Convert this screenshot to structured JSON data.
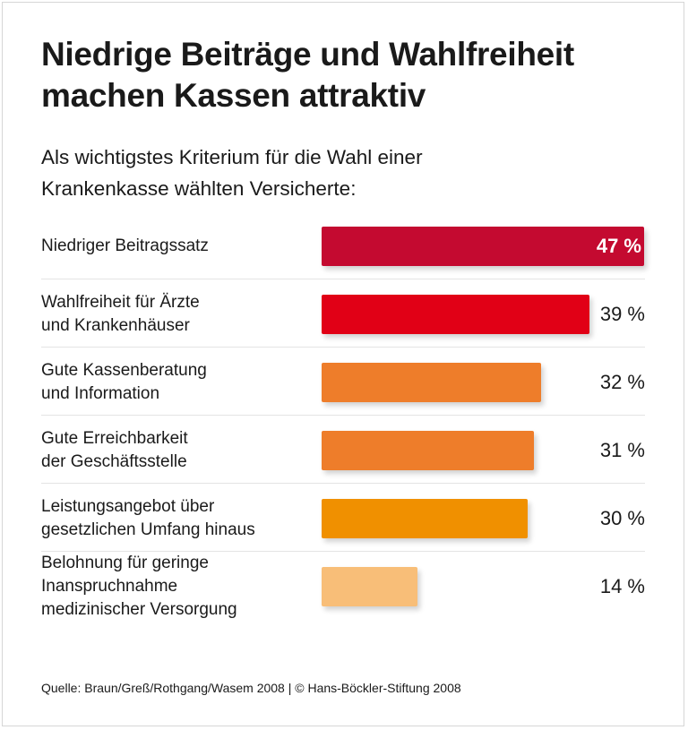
{
  "chart_data": {
    "type": "bar",
    "orientation": "horizontal",
    "title": "Niedrige Beiträge und Wahlfreiheit machen Kassen attraktiv",
    "subtitle": "Als wichtigstes Kriterium für die Wahl einer Krankenkasse wählten Versicherte:",
    "categories": [
      "Niedriger Beitragssatz",
      "Wahlfreiheit für Ärzte\nund Krankenhäuser",
      "Gute Kassenberatung\nund Information",
      "Gute Erreichbarkeit\nder Geschäftsstelle",
      "Leistungsangebot über\ngesetzlichen Umfang hinaus",
      "Belohnung für geringe\nInanspruchnahme\nmedizinischer Versorgung"
    ],
    "values": [
      47,
      39,
      32,
      31,
      30,
      14
    ],
    "value_labels": [
      "47 %",
      "39 %",
      "32 %",
      "31 %",
      "30 %",
      "14 %"
    ],
    "colors": [
      "#c40a30",
      "#e10016",
      "#ee7d2a",
      "#ee7d2a",
      "#f09000",
      "#f8be78"
    ],
    "unit": "%",
    "grid": false,
    "legend": "none"
  },
  "source": "Quelle: Braun/Greß/Rothgang/Wasem 2008 | © Hans-Böckler-Stiftung 2008"
}
